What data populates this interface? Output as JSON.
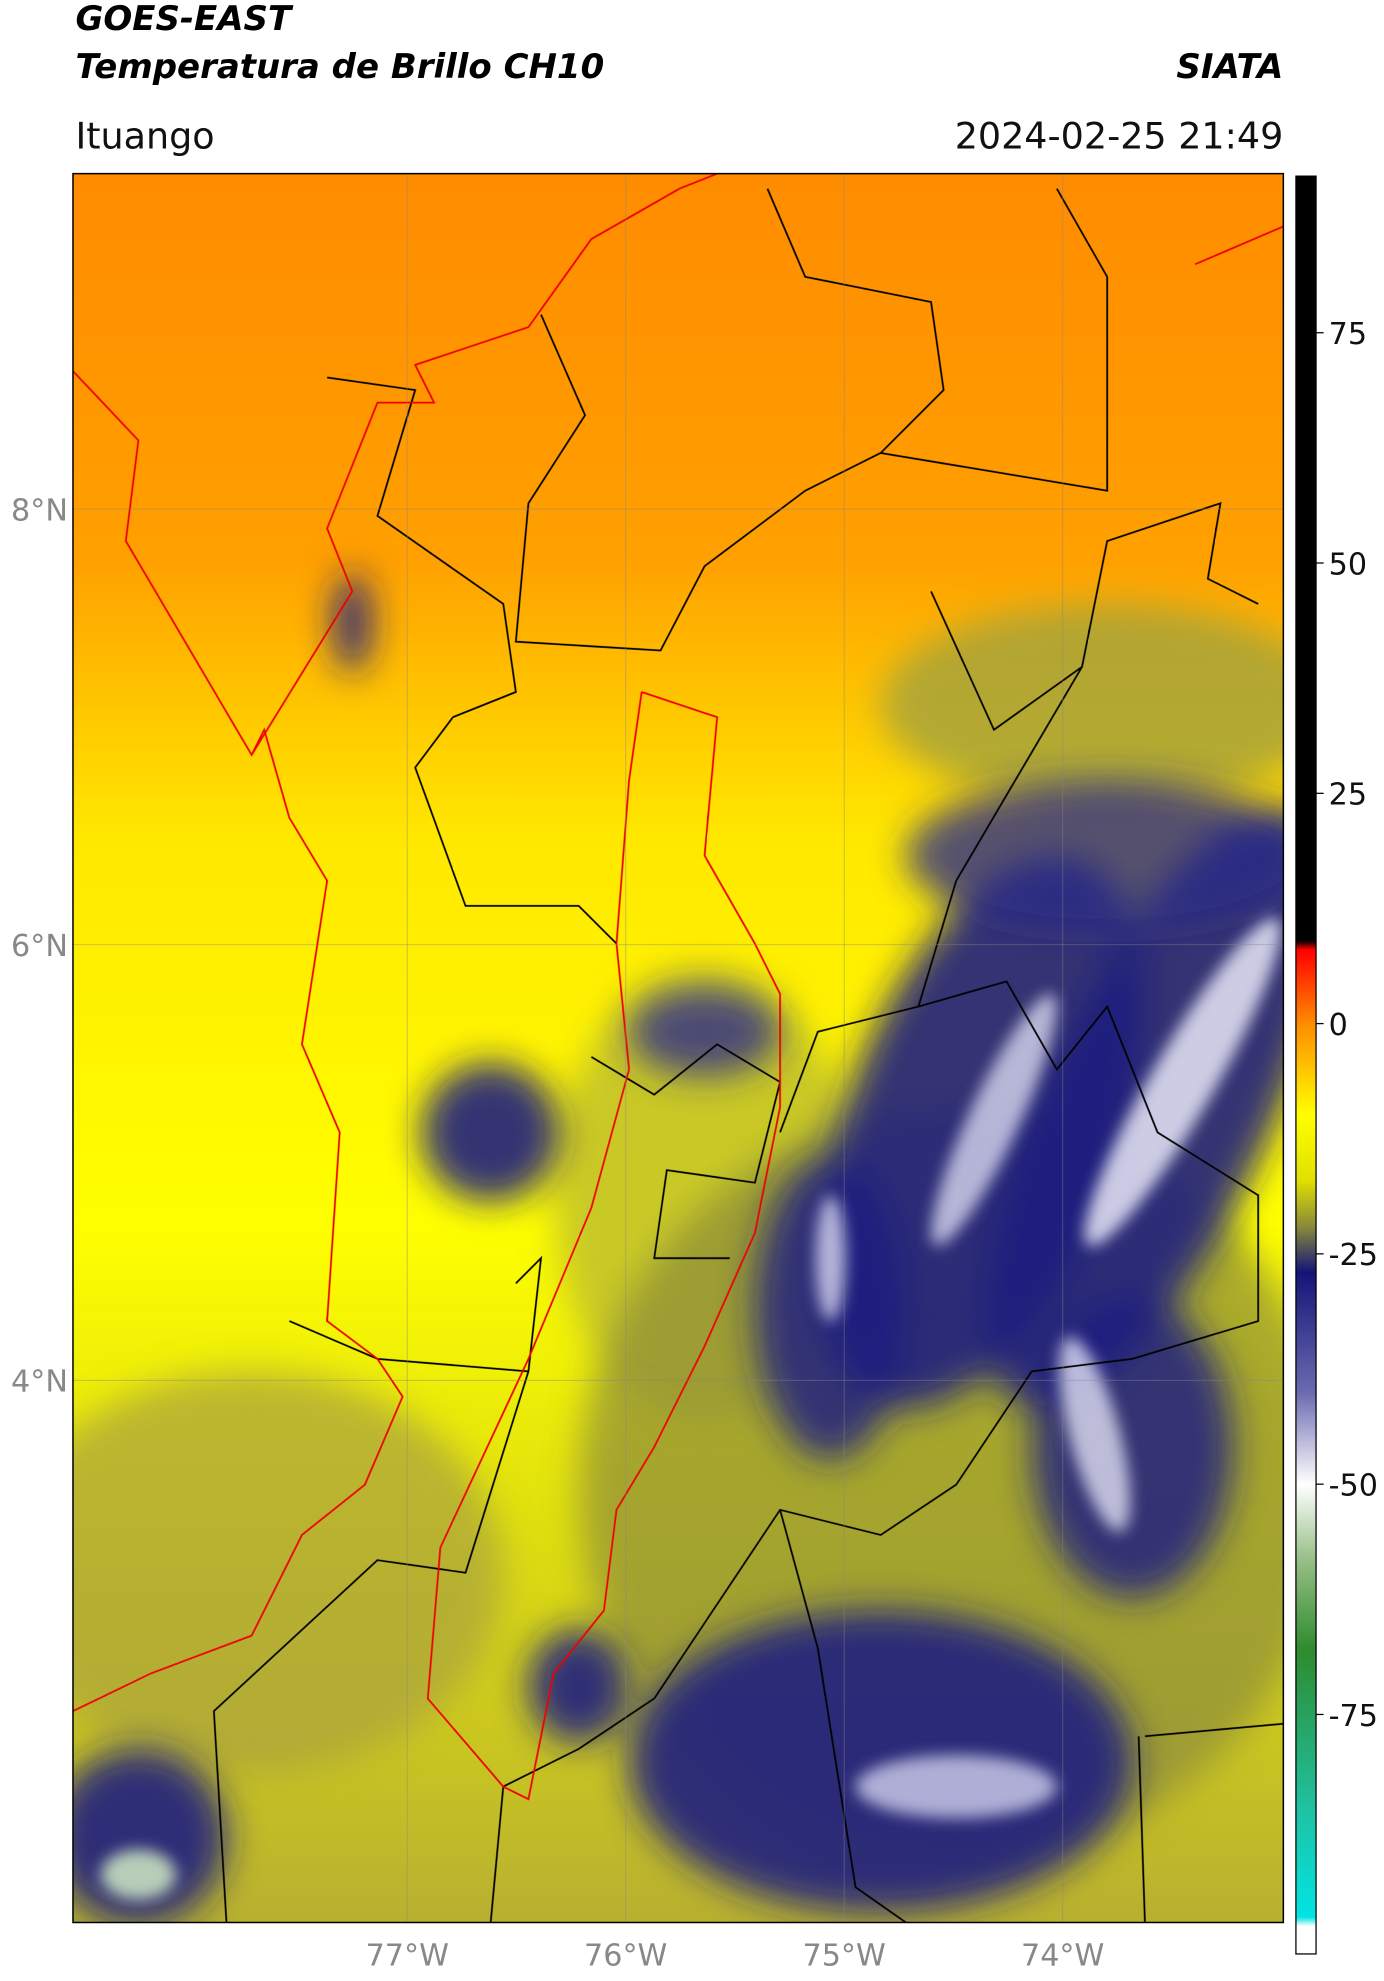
{
  "header": {
    "title": "GOES-EAST",
    "subtitle": "Temperatura de Brillo CH10",
    "brand": "SIATA",
    "location": "Ituango",
    "datetime": "2024-02-25 21:49"
  },
  "map": {
    "xlim": [
      -78.53,
      -72.99
    ],
    "ylim": [
      1.51,
      9.54
    ],
    "xticks": [
      {
        "value": -77,
        "label": "77°W"
      },
      {
        "value": -76,
        "label": "76°W"
      },
      {
        "value": -75,
        "label": "75°W"
      },
      {
        "value": -74,
        "label": "74°W"
      }
    ],
    "yticks": [
      {
        "value": 4,
        "label": "4°N"
      },
      {
        "value": 6,
        "label": "6°N"
      },
      {
        "value": 8,
        "label": "8°N"
      }
    ],
    "grid": true
  },
  "colorbar": {
    "lim": [
      -101,
      92
    ],
    "ticks": [
      -75,
      -50,
      -25,
      0,
      25,
      50,
      75
    ],
    "colormap": [
      {
        "value": 92,
        "color": "#000000"
      },
      {
        "value": 9,
        "color": "#000000"
      },
      {
        "value": 8,
        "color": "#ff0000"
      },
      {
        "value": 0,
        "color": "#ff8c00"
      },
      {
        "value": -10,
        "color": "#ffff00"
      },
      {
        "value": -17,
        "color": "#e0e000"
      },
      {
        "value": -22,
        "color": "#8a8a3a"
      },
      {
        "value": -27,
        "color": "#141478"
      },
      {
        "value": -40,
        "color": "#6a6ab0"
      },
      {
        "value": -50,
        "color": "#ffffff"
      },
      {
        "value": -58,
        "color": "#9ac08a"
      },
      {
        "value": -68,
        "color": "#2e8b2e"
      },
      {
        "value": -85,
        "color": "#20c0a0"
      },
      {
        "value": -97,
        "color": "#00e5e5"
      },
      {
        "value": -98,
        "color": "#ffffff"
      },
      {
        "value": -101,
        "color": "#ffffff"
      }
    ]
  }
}
